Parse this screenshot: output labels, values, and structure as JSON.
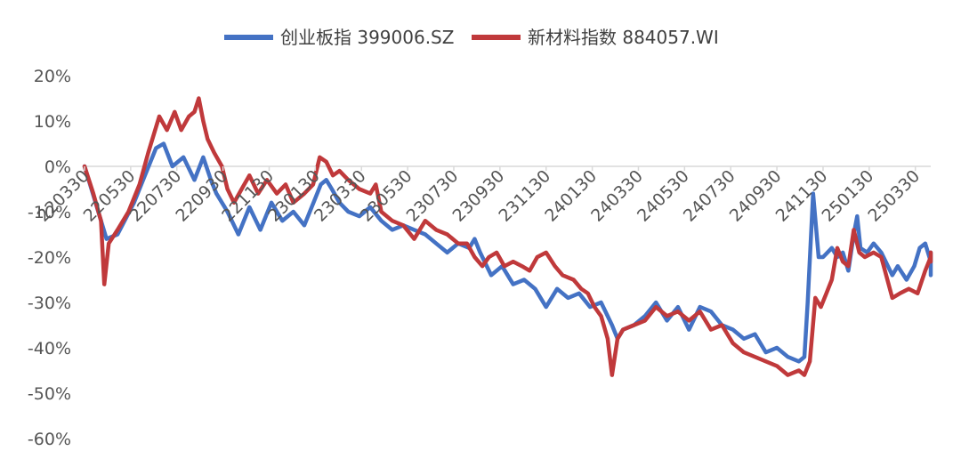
{
  "chart_data": {
    "type": "line",
    "title": "",
    "xlabel": "",
    "ylabel": "",
    "ylim": [
      -0.6,
      0.2
    ],
    "y_ticks": [
      0.2,
      0.1,
      0.0,
      -0.1,
      -0.2,
      -0.3,
      -0.4,
      -0.5,
      -0.6
    ],
    "y_tick_labels": [
      "20%",
      "10%",
      "0%",
      "-10%",
      "-20%",
      "-30%",
      "-40%",
      "-50%",
      "-60%"
    ],
    "x_tick_labels": [
      "220330",
      "220530",
      "220730",
      "220930",
      "221130",
      "230130",
      "230330",
      "230530",
      "230730",
      "230930",
      "231130",
      "240130",
      "240330",
      "240530",
      "240730",
      "240930",
      "241130",
      "250130",
      "250330"
    ],
    "x_tick_positions": [
      0,
      42,
      84,
      126,
      168,
      210,
      252,
      294,
      336,
      378,
      420,
      462,
      504,
      546,
      588,
      630,
      672,
      714,
      756
    ],
    "x_range": [
      0,
      770
    ],
    "legend_position": "top",
    "grid": false,
    "series": [
      {
        "name": "创业板指 399006.SZ",
        "color": "#4472C4",
        "points": [
          [
            0,
            0.0
          ],
          [
            10,
            -0.08
          ],
          [
            20,
            -0.16
          ],
          [
            30,
            -0.15
          ],
          [
            45,
            -0.08
          ],
          [
            55,
            -0.02
          ],
          [
            65,
            0.04
          ],
          [
            72,
            0.05
          ],
          [
            80,
            0.0
          ],
          [
            90,
            0.02
          ],
          [
            100,
            -0.03
          ],
          [
            108,
            0.02
          ],
          [
            115,
            -0.03
          ],
          [
            120,
            -0.06
          ],
          [
            130,
            -0.1
          ],
          [
            140,
            -0.15
          ],
          [
            150,
            -0.09
          ],
          [
            160,
            -0.14
          ],
          [
            170,
            -0.08
          ],
          [
            180,
            -0.12
          ],
          [
            190,
            -0.1
          ],
          [
            200,
            -0.13
          ],
          [
            210,
            -0.07
          ],
          [
            215,
            -0.04
          ],
          [
            220,
            -0.03
          ],
          [
            225,
            -0.05
          ],
          [
            232,
            -0.08
          ],
          [
            240,
            -0.1
          ],
          [
            250,
            -0.11
          ],
          [
            260,
            -0.09
          ],
          [
            270,
            -0.12
          ],
          [
            280,
            -0.14
          ],
          [
            290,
            -0.13
          ],
          [
            300,
            -0.14
          ],
          [
            310,
            -0.15
          ],
          [
            320,
            -0.17
          ],
          [
            330,
            -0.19
          ],
          [
            340,
            -0.17
          ],
          [
            350,
            -0.18
          ],
          [
            355,
            -0.16
          ],
          [
            360,
            -0.19
          ],
          [
            370,
            -0.24
          ],
          [
            380,
            -0.22
          ],
          [
            390,
            -0.26
          ],
          [
            400,
            -0.25
          ],
          [
            410,
            -0.27
          ],
          [
            420,
            -0.31
          ],
          [
            430,
            -0.27
          ],
          [
            440,
            -0.29
          ],
          [
            450,
            -0.28
          ],
          [
            460,
            -0.31
          ],
          [
            470,
            -0.3
          ],
          [
            480,
            -0.35
          ],
          [
            485,
            -0.38
          ],
          [
            490,
            -0.36
          ],
          [
            500,
            -0.35
          ],
          [
            510,
            -0.33
          ],
          [
            520,
            -0.3
          ],
          [
            530,
            -0.34
          ],
          [
            540,
            -0.31
          ],
          [
            550,
            -0.36
          ],
          [
            560,
            -0.31
          ],
          [
            570,
            -0.32
          ],
          [
            580,
            -0.35
          ],
          [
            590,
            -0.36
          ],
          [
            600,
            -0.38
          ],
          [
            610,
            -0.37
          ],
          [
            620,
            -0.41
          ],
          [
            630,
            -0.4
          ],
          [
            640,
            -0.42
          ],
          [
            650,
            -0.43
          ],
          [
            655,
            -0.42
          ],
          [
            658,
            -0.3
          ],
          [
            663,
            -0.06
          ],
          [
            668,
            -0.2
          ],
          [
            672,
            -0.2
          ],
          [
            680,
            -0.18
          ],
          [
            685,
            -0.2
          ],
          [
            690,
            -0.19
          ],
          [
            695,
            -0.23
          ],
          [
            700,
            -0.15
          ],
          [
            703,
            -0.11
          ],
          [
            706,
            -0.18
          ],
          [
            712,
            -0.19
          ],
          [
            718,
            -0.17
          ],
          [
            725,
            -0.19
          ],
          [
            735,
            -0.24
          ],
          [
            740,
            -0.22
          ],
          [
            748,
            -0.25
          ],
          [
            755,
            -0.22
          ],
          [
            760,
            -0.18
          ],
          [
            765,
            -0.17
          ],
          [
            770,
            -0.21
          ],
          [
            775,
            -0.19
          ],
          [
            780,
            -0.22
          ],
          [
            786,
            -0.19
          ],
          [
            790,
            -0.2
          ],
          [
            793,
            -0.24
          ]
        ]
      },
      {
        "name": "新材料指数 884057.WI",
        "color": "#C0393B",
        "points": [
          [
            0,
            0.0
          ],
          [
            8,
            -0.06
          ],
          [
            15,
            -0.12
          ],
          [
            18,
            -0.26
          ],
          [
            22,
            -0.17
          ],
          [
            30,
            -0.14
          ],
          [
            40,
            -0.1
          ],
          [
            50,
            -0.04
          ],
          [
            58,
            0.03
          ],
          [
            63,
            0.07
          ],
          [
            68,
            0.11
          ],
          [
            75,
            0.08
          ],
          [
            82,
            0.12
          ],
          [
            88,
            0.08
          ],
          [
            95,
            0.11
          ],
          [
            100,
            0.12
          ],
          [
            104,
            0.15
          ],
          [
            108,
            0.1
          ],
          [
            112,
            0.06
          ],
          [
            118,
            0.03
          ],
          [
            125,
            0.0
          ],
          [
            130,
            -0.05
          ],
          [
            136,
            -0.08
          ],
          [
            143,
            -0.05
          ],
          [
            150,
            -0.02
          ],
          [
            158,
            -0.06
          ],
          [
            166,
            -0.03
          ],
          [
            175,
            -0.06
          ],
          [
            183,
            -0.04
          ],
          [
            190,
            -0.08
          ],
          [
            200,
            -0.06
          ],
          [
            208,
            -0.04
          ],
          [
            214,
            0.02
          ],
          [
            220,
            0.01
          ],
          [
            226,
            -0.02
          ],
          [
            232,
            -0.01
          ],
          [
            240,
            -0.03
          ],
          [
            250,
            -0.05
          ],
          [
            260,
            -0.06
          ],
          [
            265,
            -0.04
          ],
          [
            270,
            -0.1
          ],
          [
            280,
            -0.12
          ],
          [
            290,
            -0.13
          ],
          [
            300,
            -0.16
          ],
          [
            310,
            -0.12
          ],
          [
            320,
            -0.14
          ],
          [
            330,
            -0.15
          ],
          [
            340,
            -0.17
          ],
          [
            348,
            -0.17
          ],
          [
            355,
            -0.2
          ],
          [
            362,
            -0.22
          ],
          [
            368,
            -0.2
          ],
          [
            375,
            -0.19
          ],
          [
            382,
            -0.22
          ],
          [
            390,
            -0.21
          ],
          [
            398,
            -0.22
          ],
          [
            405,
            -0.23
          ],
          [
            412,
            -0.2
          ],
          [
            420,
            -0.19
          ],
          [
            428,
            -0.22
          ],
          [
            435,
            -0.24
          ],
          [
            445,
            -0.25
          ],
          [
            452,
            -0.27
          ],
          [
            458,
            -0.28
          ],
          [
            464,
            -0.31
          ],
          [
            470,
            -0.33
          ],
          [
            476,
            -0.38
          ],
          [
            480,
            -0.46
          ],
          [
            485,
            -0.38
          ],
          [
            490,
            -0.36
          ],
          [
            500,
            -0.35
          ],
          [
            510,
            -0.34
          ],
          [
            520,
            -0.31
          ],
          [
            530,
            -0.33
          ],
          [
            540,
            -0.32
          ],
          [
            550,
            -0.34
          ],
          [
            560,
            -0.32
          ],
          [
            570,
            -0.36
          ],
          [
            580,
            -0.35
          ],
          [
            590,
            -0.39
          ],
          [
            600,
            -0.41
          ],
          [
            610,
            -0.42
          ],
          [
            620,
            -0.43
          ],
          [
            630,
            -0.44
          ],
          [
            640,
            -0.46
          ],
          [
            650,
            -0.45
          ],
          [
            655,
            -0.46
          ],
          [
            660,
            -0.43
          ],
          [
            665,
            -0.29
          ],
          [
            670,
            -0.31
          ],
          [
            675,
            -0.28
          ],
          [
            680,
            -0.25
          ],
          [
            685,
            -0.18
          ],
          [
            690,
            -0.21
          ],
          [
            695,
            -0.22
          ],
          [
            700,
            -0.14
          ],
          [
            705,
            -0.19
          ],
          [
            710,
            -0.2
          ],
          [
            718,
            -0.19
          ],
          [
            725,
            -0.2
          ],
          [
            735,
            -0.29
          ],
          [
            742,
            -0.28
          ],
          [
            750,
            -0.27
          ],
          [
            758,
            -0.28
          ],
          [
            765,
            -0.23
          ],
          [
            770,
            -0.2
          ],
          [
            775,
            -0.19
          ],
          [
            780,
            -0.2
          ],
          [
            787,
            -0.19
          ],
          [
            793,
            -0.21
          ]
        ]
      }
    ]
  }
}
